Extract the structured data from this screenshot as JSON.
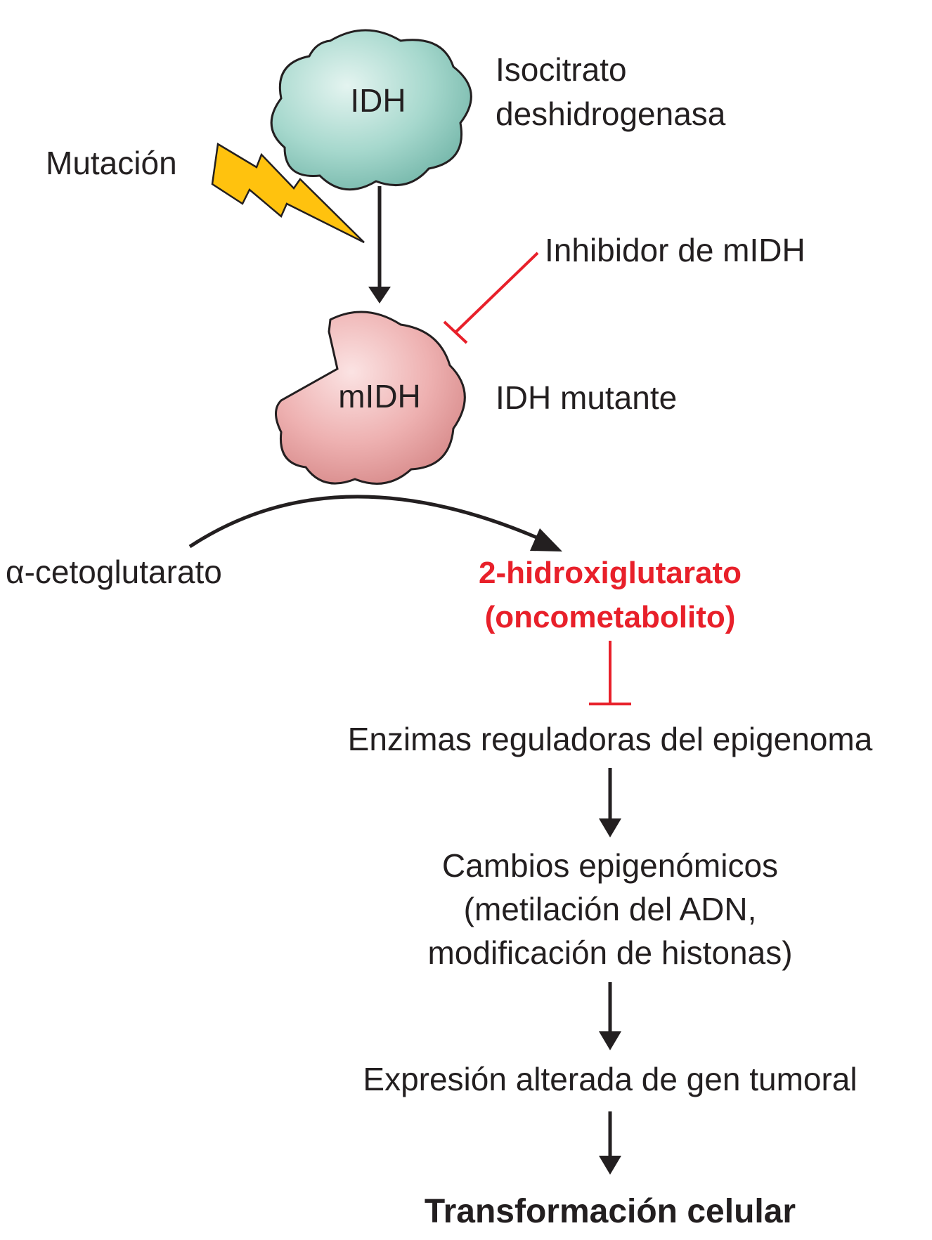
{
  "nodes": {
    "idh": {
      "label": "IDH",
      "description_line1": "Isocitrato",
      "description_line2": "deshidrogenasa",
      "fill": "#8fcbbf"
    },
    "mutation": {
      "label": "Mutación",
      "bolt_color": "#ffc20e"
    },
    "inhibitor": {
      "label": "Inhibidor de mIDH",
      "color": "#e8202a"
    },
    "midh": {
      "label": "mIDH",
      "description": "IDH mutante",
      "fill": "#e8a3a3"
    },
    "substrate": {
      "label": "α-cetoglutarato"
    },
    "product": {
      "line1": "2-hidroxiglutarato",
      "line2": "(oncometabolito)",
      "color": "#e8202a"
    },
    "enzymes": {
      "label": "Enzimas reguladoras del epigenoma"
    },
    "changes": {
      "line1": "Cambios epigenómicos",
      "line2": "(metilación del ADN,",
      "line3": "modificación de histonas)"
    },
    "expression": {
      "label": "Expresión alterada de gen tumoral"
    },
    "transformation": {
      "label": "Transformación celular"
    }
  },
  "colors": {
    "arrow": "#231f20",
    "inhibition": "#e8202a"
  }
}
